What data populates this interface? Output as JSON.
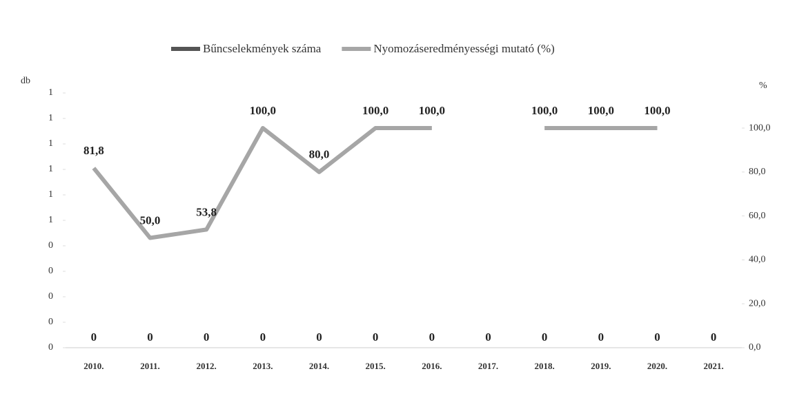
{
  "chart_data": {
    "type": "combo",
    "y_label": "db",
    "y2_label": "%",
    "categories": [
      "2010.",
      "2011.",
      "2012.",
      "2013.",
      "2014.",
      "2015.",
      "2016.",
      "2017.",
      "2018.",
      "2019.",
      "2020.",
      "2021."
    ],
    "series": [
      {
        "name": "Bűncselekmények száma",
        "type": "bar",
        "color": "#555555",
        "values": [
          0,
          0,
          0,
          0,
          0,
          0,
          0,
          0,
          0,
          0,
          0,
          0
        ]
      },
      {
        "name": "Nyomozáseredményességi mutató (%)",
        "type": "line",
        "axis": "y2",
        "color": "#a6a6a6",
        "values": [
          81.8,
          50,
          53.8,
          100,
          80,
          100,
          100,
          null,
          100,
          100,
          100,
          null
        ],
        "value_labels": [
          "81,8",
          "50,0",
          "53,8",
          "100,0",
          "80,0",
          "100,0",
          "100,0",
          null,
          "100,0",
          "100,0",
          "100,0",
          null
        ]
      }
    ],
    "ylim": [
      0,
      1
    ],
    "yticks": [
      {
        "value": 0,
        "label": "0"
      },
      {
        "value": 0.1,
        "label": "0"
      },
      {
        "value": 0.2,
        "label": "0"
      },
      {
        "value": 0.3,
        "label": "0"
      },
      {
        "value": 0.4,
        "label": "0"
      },
      {
        "value": 0.5,
        "label": "1"
      },
      {
        "value": 0.6,
        "label": "1"
      },
      {
        "value": 0.7,
        "label": "1"
      },
      {
        "value": 0.8,
        "label": "1"
      },
      {
        "value": 0.9,
        "label": "1"
      },
      {
        "value": 1,
        "label": "1"
      }
    ],
    "y2lim": [
      0,
      116
    ],
    "y2ticks": [
      {
        "value": 0,
        "label": "0,0"
      },
      {
        "value": 20,
        "label": "20,0"
      },
      {
        "value": 40,
        "label": "40,0"
      },
      {
        "value": 60,
        "label": "60,0"
      },
      {
        "value": 80,
        "label": "80,0"
      },
      {
        "value": 100,
        "label": "100,0"
      }
    ],
    "legend": "top",
    "grid": false
  }
}
